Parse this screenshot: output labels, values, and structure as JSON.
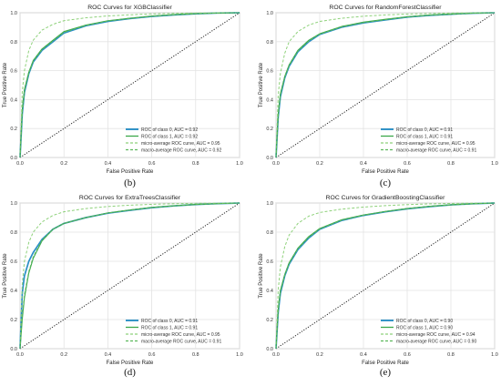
{
  "colors": {
    "class0": "#2a8fc6",
    "class1": "#3aa84a",
    "micro": "#8ed17a",
    "macro": "#5cb85c",
    "diagonal": "#222222",
    "grid": "#e3e3e3",
    "axis": "#999999"
  },
  "chart_data": [
    {
      "type": "line",
      "caption": "(b)",
      "title": "ROC Curves for XGBClassifier",
      "xlabel": "False Positive Rate",
      "ylabel": "True Positive Rate",
      "xlim": [
        0,
        1
      ],
      "ylim": [
        0,
        1
      ],
      "xticks": [
        "0.0",
        "0.2",
        "0.4",
        "0.6",
        "0.8",
        "1.0"
      ],
      "yticks": [
        "0.0",
        "0.2",
        "0.4",
        "0.6",
        "0.8",
        "1.0"
      ],
      "grid": true,
      "legend_position": "lower-right",
      "series": [
        {
          "name": "ROC of class 0, AUC = 0.92",
          "style": "solid",
          "x": [
            0,
            0.01,
            0.02,
            0.04,
            0.06,
            0.1,
            0.15,
            0.2,
            0.3,
            0.4,
            0.5,
            0.6,
            0.7,
            0.8,
            0.9,
            1.0
          ],
          "y": [
            0,
            0.3,
            0.45,
            0.58,
            0.66,
            0.74,
            0.8,
            0.86,
            0.91,
            0.94,
            0.96,
            0.975,
            0.985,
            0.993,
            0.998,
            1.0
          ]
        },
        {
          "name": "ROC of class 1, AUC = 0.92",
          "style": "solid",
          "x": [
            0,
            0.01,
            0.02,
            0.04,
            0.06,
            0.1,
            0.15,
            0.2,
            0.3,
            0.4,
            0.5,
            0.6,
            0.7,
            0.8,
            0.9,
            1.0
          ],
          "y": [
            0,
            0.33,
            0.47,
            0.59,
            0.67,
            0.75,
            0.81,
            0.87,
            0.915,
            0.945,
            0.962,
            0.977,
            0.987,
            0.994,
            0.998,
            1.0
          ]
        },
        {
          "name": "micro-average ROC curve, AUC = 0.95",
          "style": "dashed",
          "x": [
            0,
            0.01,
            0.02,
            0.04,
            0.06,
            0.1,
            0.15,
            0.2,
            0.3,
            0.4,
            0.5,
            0.6,
            0.7,
            0.8,
            0.9,
            1.0
          ],
          "y": [
            0,
            0.45,
            0.6,
            0.74,
            0.81,
            0.88,
            0.92,
            0.945,
            0.965,
            0.978,
            0.986,
            0.992,
            0.996,
            0.998,
            0.999,
            1.0
          ]
        },
        {
          "name": "macro-average ROC curve, AUC = 0.92",
          "style": "dashed",
          "x": [
            0,
            0.01,
            0.02,
            0.04,
            0.06,
            0.1,
            0.15,
            0.2,
            0.3,
            0.4,
            0.5,
            0.6,
            0.7,
            0.8,
            0.9,
            1.0
          ],
          "y": [
            0,
            0.31,
            0.46,
            0.585,
            0.665,
            0.745,
            0.805,
            0.865,
            0.912,
            0.943,
            0.961,
            0.976,
            0.986,
            0.993,
            0.998,
            1.0
          ]
        }
      ]
    },
    {
      "type": "line",
      "caption": "(c)",
      "title": "ROC Curves for RandomForestClassifier",
      "xlabel": "False Positive Rate",
      "ylabel": "True Positive Rate",
      "xlim": [
        0,
        1
      ],
      "ylim": [
        0,
        1
      ],
      "xticks": [
        "0.0",
        "0.2",
        "0.4",
        "0.6",
        "0.8",
        "1.0"
      ],
      "yticks": [
        "0.0",
        "0.2",
        "0.4",
        "0.6",
        "0.8",
        "1.0"
      ],
      "grid": true,
      "legend_position": "lower-right",
      "series": [
        {
          "name": "ROC of class 0, AUC = 0.91",
          "style": "solid",
          "x": [
            0,
            0.01,
            0.02,
            0.04,
            0.06,
            0.1,
            0.15,
            0.2,
            0.3,
            0.4,
            0.5,
            0.6,
            0.7,
            0.8,
            0.9,
            1.0
          ],
          "y": [
            0,
            0.28,
            0.42,
            0.55,
            0.63,
            0.73,
            0.8,
            0.85,
            0.9,
            0.93,
            0.95,
            0.97,
            0.982,
            0.99,
            0.997,
            1.0
          ]
        },
        {
          "name": "ROC of class 1, AUC = 0.91",
          "style": "solid",
          "x": [
            0,
            0.01,
            0.02,
            0.04,
            0.06,
            0.1,
            0.15,
            0.2,
            0.3,
            0.4,
            0.5,
            0.6,
            0.7,
            0.8,
            0.9,
            1.0
          ],
          "y": [
            0,
            0.3,
            0.44,
            0.56,
            0.64,
            0.74,
            0.81,
            0.855,
            0.905,
            0.935,
            0.955,
            0.972,
            0.984,
            0.991,
            0.997,
            1.0
          ]
        },
        {
          "name": "micro-average ROC curve, AUC = 0.95",
          "style": "dashed",
          "x": [
            0,
            0.01,
            0.02,
            0.04,
            0.06,
            0.1,
            0.15,
            0.2,
            0.3,
            0.4,
            0.5,
            0.6,
            0.7,
            0.8,
            0.9,
            1.0
          ],
          "y": [
            0,
            0.43,
            0.58,
            0.72,
            0.8,
            0.87,
            0.915,
            0.94,
            0.962,
            0.976,
            0.985,
            0.991,
            0.995,
            0.998,
            0.999,
            1.0
          ]
        },
        {
          "name": "macro-average ROC curve, AUC = 0.91",
          "style": "dashed",
          "x": [
            0,
            0.01,
            0.02,
            0.04,
            0.06,
            0.1,
            0.15,
            0.2,
            0.3,
            0.4,
            0.5,
            0.6,
            0.7,
            0.8,
            0.9,
            1.0
          ],
          "y": [
            0,
            0.29,
            0.43,
            0.555,
            0.635,
            0.735,
            0.805,
            0.852,
            0.902,
            0.932,
            0.952,
            0.971,
            0.983,
            0.99,
            0.997,
            1.0
          ]
        }
      ]
    },
    {
      "type": "line",
      "caption": "(d)",
      "title": "ROC Curves for ExtraTreesClassifier",
      "xlabel": "False Positive Rate",
      "ylabel": "True Positive Rate",
      "xlim": [
        0,
        1
      ],
      "ylim": [
        0,
        1
      ],
      "xticks": [
        "0.0",
        "0.2",
        "0.4",
        "0.6",
        "0.8",
        "1.0"
      ],
      "yticks": [
        "0.0",
        "0.2",
        "0.4",
        "0.6",
        "0.8",
        "1.0"
      ],
      "grid": true,
      "legend_position": "lower-right",
      "series": [
        {
          "name": "ROC of class 0, AUC = 0.91",
          "style": "solid",
          "x": [
            0,
            0.01,
            0.02,
            0.04,
            0.06,
            0.1,
            0.15,
            0.2,
            0.3,
            0.4,
            0.5,
            0.6,
            0.7,
            0.8,
            0.9,
            1.0
          ],
          "y": [
            0,
            0.38,
            0.5,
            0.6,
            0.66,
            0.75,
            0.82,
            0.86,
            0.9,
            0.93,
            0.95,
            0.968,
            0.98,
            0.99,
            0.996,
            1.0
          ]
        },
        {
          "name": "ROC of class 1, AUC = 0.91",
          "style": "solid",
          "x": [
            0,
            0.01,
            0.02,
            0.04,
            0.06,
            0.1,
            0.15,
            0.2,
            0.3,
            0.4,
            0.5,
            0.6,
            0.7,
            0.8,
            0.9,
            1.0
          ],
          "y": [
            0,
            0.2,
            0.35,
            0.52,
            0.62,
            0.74,
            0.82,
            0.86,
            0.9,
            0.932,
            0.952,
            0.97,
            0.981,
            0.99,
            0.996,
            1.0
          ]
        },
        {
          "name": "micro-average ROC curve, AUC = 0.95",
          "style": "dashed",
          "x": [
            0,
            0.01,
            0.02,
            0.04,
            0.06,
            0.1,
            0.15,
            0.2,
            0.3,
            0.4,
            0.5,
            0.6,
            0.7,
            0.8,
            0.9,
            1.0
          ],
          "y": [
            0,
            0.44,
            0.6,
            0.73,
            0.8,
            0.87,
            0.915,
            0.94,
            0.962,
            0.976,
            0.985,
            0.991,
            0.995,
            0.998,
            0.999,
            1.0
          ]
        },
        {
          "name": "macro-average ROC curve, AUC = 0.91",
          "style": "dashed",
          "x": [
            0,
            0.01,
            0.02,
            0.04,
            0.06,
            0.1,
            0.15,
            0.2,
            0.3,
            0.4,
            0.5,
            0.6,
            0.7,
            0.8,
            0.9,
            1.0
          ],
          "y": [
            0,
            0.22,
            0.37,
            0.53,
            0.63,
            0.745,
            0.82,
            0.86,
            0.9,
            0.931,
            0.951,
            0.969,
            0.98,
            0.99,
            0.996,
            1.0
          ]
        }
      ]
    },
    {
      "type": "line",
      "caption": "(e)",
      "title": "ROC Curves for GradientBoostingClassifier",
      "xlabel": "False Positive Rate",
      "ylabel": "True Positive Rate",
      "xlim": [
        0,
        1
      ],
      "ylim": [
        0,
        1
      ],
      "xticks": [
        "0.0",
        "0.2",
        "0.4",
        "0.6",
        "0.8",
        "1.0"
      ],
      "yticks": [
        "0.0",
        "0.2",
        "0.4",
        "0.6",
        "0.8",
        "1.0"
      ],
      "grid": true,
      "legend_position": "lower-right",
      "series": [
        {
          "name": "ROC of class 0, AUC = 0.90",
          "style": "solid",
          "x": [
            0,
            0.01,
            0.02,
            0.04,
            0.06,
            0.1,
            0.15,
            0.2,
            0.3,
            0.4,
            0.5,
            0.6,
            0.7,
            0.8,
            0.9,
            1.0
          ],
          "y": [
            0,
            0.25,
            0.38,
            0.5,
            0.58,
            0.68,
            0.76,
            0.82,
            0.88,
            0.915,
            0.94,
            0.96,
            0.975,
            0.987,
            0.995,
            1.0
          ]
        },
        {
          "name": "ROC of class 1, AUC = 0.90",
          "style": "solid",
          "x": [
            0,
            0.01,
            0.02,
            0.04,
            0.06,
            0.1,
            0.15,
            0.2,
            0.3,
            0.4,
            0.5,
            0.6,
            0.7,
            0.8,
            0.9,
            1.0
          ],
          "y": [
            0,
            0.27,
            0.4,
            0.51,
            0.59,
            0.69,
            0.77,
            0.825,
            0.885,
            0.918,
            0.942,
            0.962,
            0.977,
            0.988,
            0.995,
            1.0
          ]
        },
        {
          "name": "micro-average ROC curve, AUC = 0.94",
          "style": "dashed",
          "x": [
            0,
            0.01,
            0.02,
            0.04,
            0.06,
            0.1,
            0.15,
            0.2,
            0.3,
            0.4,
            0.5,
            0.6,
            0.7,
            0.8,
            0.9,
            1.0
          ],
          "y": [
            0,
            0.4,
            0.56,
            0.7,
            0.78,
            0.86,
            0.91,
            0.935,
            0.958,
            0.972,
            0.982,
            0.989,
            0.994,
            0.997,
            0.999,
            1.0
          ]
        },
        {
          "name": "macro-average ROC curve, AUC = 0.90",
          "style": "dashed",
          "x": [
            0,
            0.01,
            0.02,
            0.04,
            0.06,
            0.1,
            0.15,
            0.2,
            0.3,
            0.4,
            0.5,
            0.6,
            0.7,
            0.8,
            0.9,
            1.0
          ],
          "y": [
            0,
            0.26,
            0.39,
            0.505,
            0.585,
            0.685,
            0.765,
            0.822,
            0.882,
            0.916,
            0.941,
            0.961,
            0.976,
            0.987,
            0.995,
            1.0
          ]
        }
      ]
    }
  ]
}
